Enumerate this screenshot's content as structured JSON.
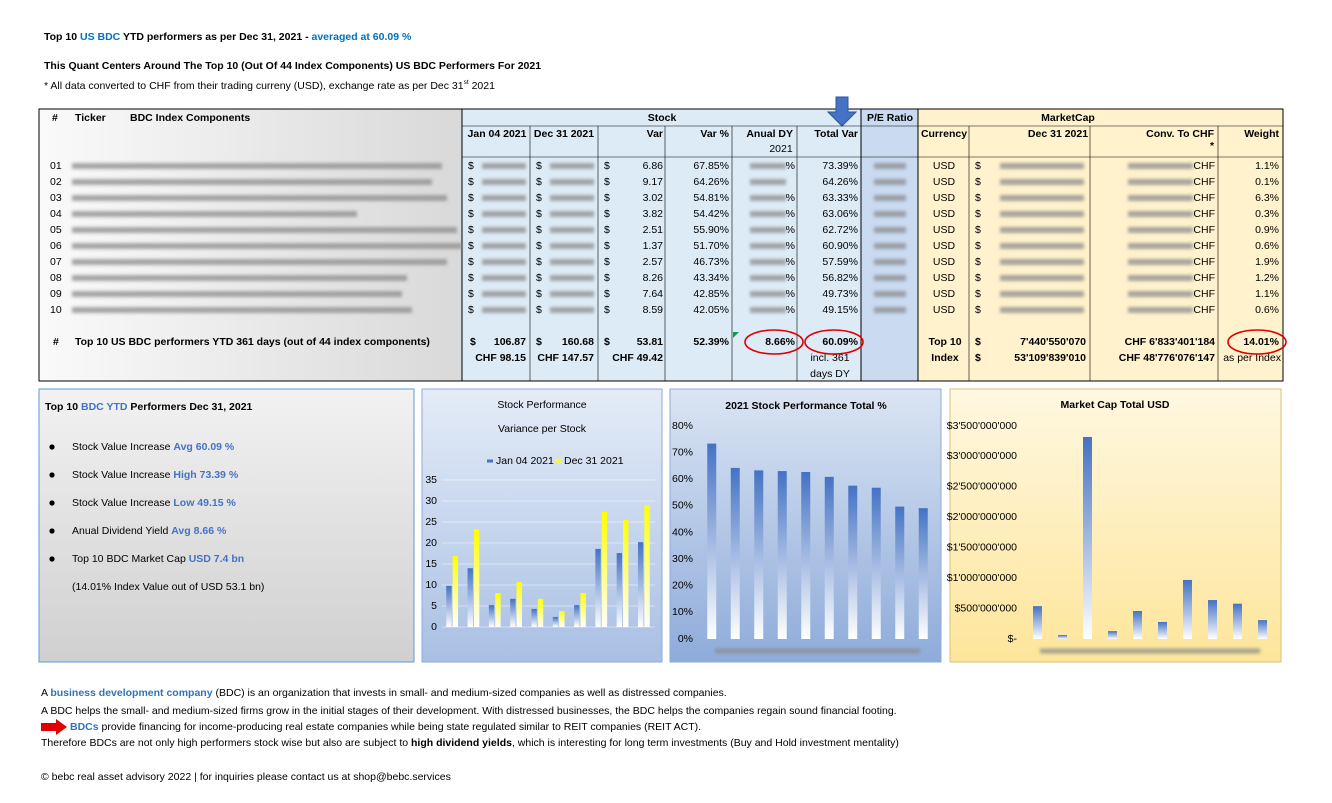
{
  "header": {
    "title": [
      "Top 10 ",
      "US BDC",
      " YTD performers as per Dec 31, 2021 -  ",
      "averaged at 60.09 %"
    ],
    "subtitle": "This Quant Centers Around The Top 10 (Out Of 44 Index Components) US BDC Performers For 2021",
    "note": [
      "* All data converted to CHF from their trading curreny (USD), exchange rate as per Dec 31",
      "st",
      " 2021"
    ]
  },
  "table": {
    "group_headers": {
      "num": "#",
      "ticker": "Ticker",
      "components": "BDC Index Components",
      "stock": "Stock",
      "pe": "P/E Ratio",
      "marketcap": "MarketCap"
    },
    "columns": [
      "Jan 04 2021",
      "Dec 31 2021",
      "Var",
      "Var %",
      "Anual DY",
      "Total Var",
      "Currency",
      "Dec 31 2021",
      "Conv. To CHF",
      "Weight"
    ],
    "dy_year": "2021",
    "asterisk": "*",
    "dollar": "$",
    "chf": "CHF",
    "rows": [
      {
        "num": "01",
        "var": "6.86",
        "var_pct": "67.85%",
        "dy_unit": "%",
        "total_var": "73.39%",
        "currency": "USD",
        "weight": "1.1%"
      },
      {
        "num": "02",
        "var": "9.17",
        "var_pct": "64.26%",
        "total_var": "64.26%",
        "currency": "USD",
        "weight": "0.1%"
      },
      {
        "num": "03",
        "var": "3.02",
        "var_pct": "54.81%",
        "dy_unit": "%",
        "total_var": "63.33%",
        "currency": "USD",
        "weight": "6.3%"
      },
      {
        "num": "04",
        "var": "3.82",
        "var_pct": "54.42%",
        "dy_unit": "%",
        "total_var": "63.06%",
        "currency": "USD",
        "weight": "0.3%"
      },
      {
        "num": "05",
        "var": "2.51",
        "var_pct": "55.90%",
        "dy_unit": "%",
        "total_var": "62.72%",
        "currency": "USD",
        "weight": "0.9%"
      },
      {
        "num": "06",
        "var": "1.37",
        "var_pct": "51.70%",
        "dy_unit": "%",
        "total_var": "60.90%",
        "currency": "USD",
        "weight": "0.6%"
      },
      {
        "num": "07",
        "var": "2.57",
        "var_pct": "46.73%",
        "dy_unit": "%",
        "total_var": "57.59%",
        "currency": "USD",
        "weight": "1.9%"
      },
      {
        "num": "08",
        "var": "8.26",
        "var_pct": "43.34%",
        "dy_unit": "%",
        "total_var": "56.82%",
        "currency": "USD",
        "weight": "1.2%"
      },
      {
        "num": "09",
        "var": "7.64",
        "var_pct": "42.85%",
        "dy_unit": "%",
        "total_var": "49.73%",
        "currency": "USD",
        "weight": "1.1%"
      },
      {
        "num": "10",
        "var": "8.59",
        "var_pct": "42.05%",
        "dy_unit": "%",
        "total_var": "49.15%",
        "currency": "USD",
        "weight": "0.6%"
      }
    ],
    "totals": {
      "num": "#",
      "label": "Top 10 US BDC performers YTD 361 days (out of 44 index components)",
      "jan": "106.87",
      "dec": "160.68",
      "var": "53.81",
      "var_pct": "52.39%",
      "dy": "8.66%",
      "total_var": "60.09%",
      "mcap_label": "Top 10",
      "mcap_usd": "7'440'550'070",
      "mcap_chf": "CHF 6'833'401'184",
      "weight": "14.01%"
    },
    "totals_chf": {
      "jan": "CHF 98.15",
      "dec": "CHF 147.57",
      "var": "CHF 49.42",
      "total_var_note": [
        "incl.  361",
        "days DY"
      ],
      "mcap_label": "Index",
      "mcap_usd": "53'109'839'010",
      "mcap_chf": "CHF 48'776'076'147",
      "weight": "as per Index"
    }
  },
  "summary": {
    "title": [
      "Top 10 ",
      "BDC YTD",
      " Performers Dec 31, 2021"
    ],
    "bullets": [
      [
        "Stock Value Increase ",
        "Avg 60.09 %"
      ],
      [
        "Stock Value Increase ",
        "High 73.39 %"
      ],
      [
        "Stock Value Increase ",
        "Low 49.15 %"
      ],
      [
        "Anual Dividend Yield ",
        "Avg 8.66 %"
      ],
      [
        "Top 10 BDC Market Cap ",
        "USD 7.4 bn"
      ]
    ],
    "continuation": "(14.01% Index Value out of USD 53.1 bn)"
  },
  "chart_data": [
    {
      "type": "bar",
      "title": "Stock Performance",
      "subtitle": "Variance per Stock",
      "categories": [
        null,
        null,
        null,
        null,
        null,
        null,
        null,
        null,
        null,
        null
      ],
      "series": [
        {
          "name": "Jan 04 2021",
          "color": "#4472c4",
          "values": [
            9.8,
            14,
            5.2,
            6.7,
            4.3,
            2.4,
            5.2,
            18.6,
            17.6,
            20.2
          ]
        },
        {
          "name": "Dec 31 2021",
          "color": "#ffff00",
          "values": [
            16.9,
            23.3,
            8.1,
            10.7,
            6.7,
            3.8,
            8.1,
            27.4,
            25.5,
            29
          ]
        }
      ],
      "ylim": [
        0,
        35
      ],
      "yticks": [
        0,
        5,
        10,
        15,
        20,
        25,
        30,
        35
      ],
      "grid": true
    },
    {
      "type": "bar",
      "title": "2021 Stock Performance Total %",
      "categories": [
        null,
        null,
        null,
        null,
        null,
        null,
        null,
        null,
        null,
        null
      ],
      "values": [
        73.39,
        64.26,
        63.33,
        63.06,
        62.72,
        60.9,
        57.59,
        56.82,
        49.73,
        49.15
      ],
      "color": "#4472c4",
      "ylim": [
        0,
        80
      ],
      "yticks": [
        {
          "value": 0,
          "label": "0%"
        },
        {
          "value": 10,
          "label": "10%"
        },
        {
          "value": 20,
          "label": "20%"
        },
        {
          "value": 30,
          "label": "30%"
        },
        {
          "value": 40,
          "label": "40%"
        },
        {
          "value": 50,
          "label": "50%"
        },
        {
          "value": 60,
          "label": "60%"
        },
        {
          "value": 70,
          "label": "70%"
        },
        {
          "value": 80,
          "label": "80%"
        }
      ]
    },
    {
      "type": "bar",
      "title": "Market Cap Total USD",
      "categories": [
        null,
        null,
        null,
        null,
        null,
        null,
        null,
        null,
        null,
        null
      ],
      "values": [
        540000000,
        66000000,
        3320000000,
        130000000,
        460000000,
        280000000,
        970000000,
        640000000,
        580000000,
        310000000
      ],
      "color": "#4472c4",
      "ylim": [
        0,
        3500000000
      ],
      "yticks": [
        {
          "value": 0,
          "label": "$-"
        },
        {
          "value": 500000000,
          "label": "$500'000'000"
        },
        {
          "value": 1000000000,
          "label": "$1'000'000'000"
        },
        {
          "value": 1500000000,
          "label": "$1'500'000'000"
        },
        {
          "value": 2000000000,
          "label": "$2'000'000'000"
        },
        {
          "value": 2500000000,
          "label": "$2'500'000'000"
        },
        {
          "value": 3000000000,
          "label": "$3'000'000'000"
        },
        {
          "value": 3500000000,
          "label": "$3'500'000'000"
        }
      ]
    }
  ],
  "footer": {
    "lines": [
      [
        "A ",
        "business development company",
        " (BDC) is an organization that invests in small- and medium-sized companies as well as distressed companies."
      ],
      [
        "A BDC helps the small- and medium-sized firms grow in the initial stages of their development. With distressed businesses, the BDC helps the companies regain sound financial footing."
      ],
      [
        "BDCs",
        " provide financing for income-producing real estate companies while being state regulated similar to REIT companies (REIT ACT)."
      ],
      [
        "Therefore BDCs are not only high performers stock wise but also are subject to ",
        "high dividend yields",
        ", which is interesting for long term investments (Buy and Hold investment mentality)"
      ]
    ],
    "copyright": "© bebc real asset advisory 2022 | for inquiries please contact us at shop@bebc.services"
  }
}
